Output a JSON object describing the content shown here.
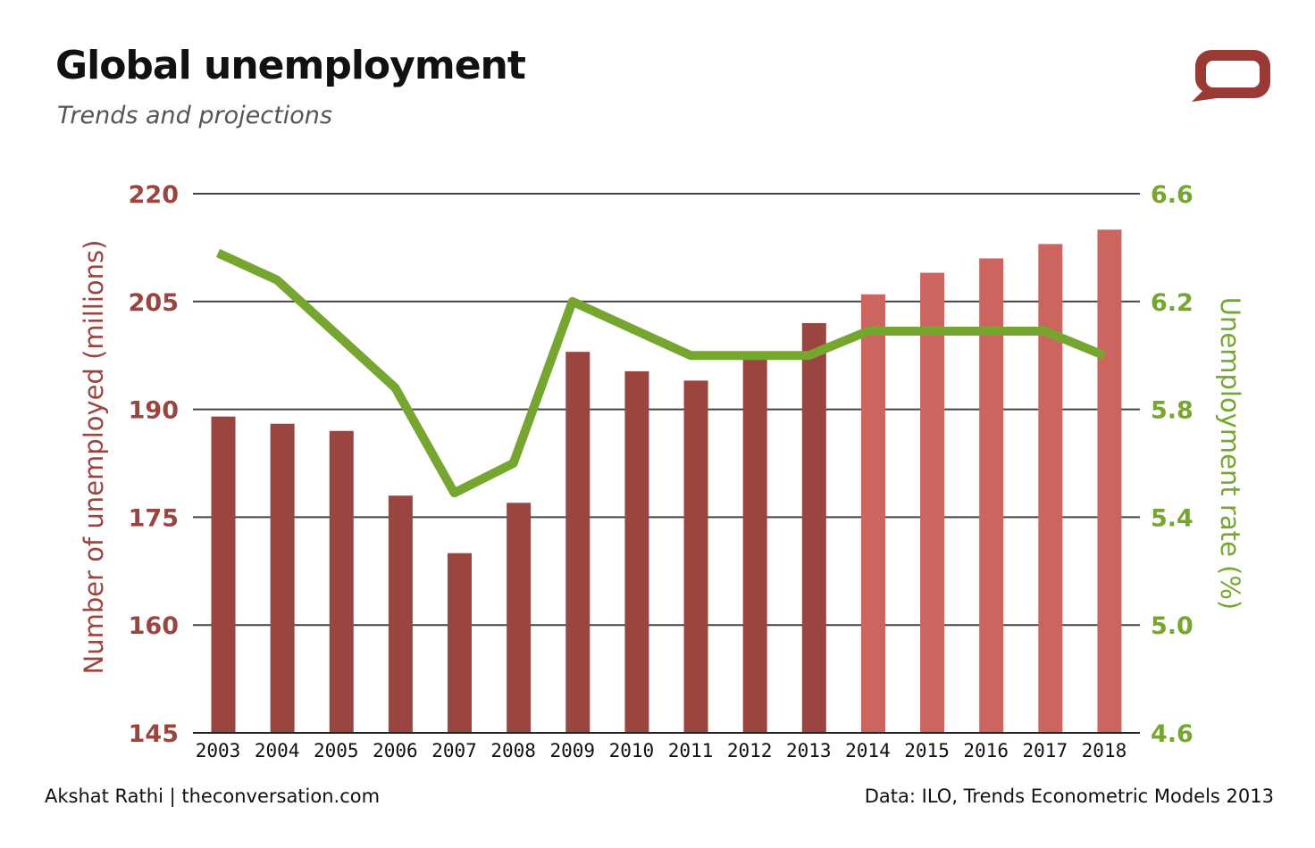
{
  "header": {
    "title": "Global unemployment",
    "subtitle": "Trends and projections"
  },
  "footer": {
    "author": "Akshat Rathi | theconversation.com",
    "source": "Data: ILO, Trends Econometric Models 2013"
  },
  "logo": {
    "icon": "speech-bubble-icon",
    "color": "#9b3a35"
  },
  "colors": {
    "bar_actual": "#9a4540",
    "bar_projected": "#cc6460",
    "line": "#77a630",
    "left_axis": "#9a4540",
    "right_axis": "#77a630",
    "grid": "#444444"
  },
  "chart_data": {
    "type": "bar",
    "categories": [
      "2003",
      "2004",
      "2005",
      "2006",
      "2007",
      "2008",
      "2009",
      "2010",
      "2011",
      "2012",
      "2013",
      "2014",
      "2015",
      "2016",
      "2017",
      "2018"
    ],
    "series": [
      {
        "type": "bar",
        "axis": "left",
        "values": [
          189,
          188,
          187,
          178,
          170,
          177,
          198,
          195.3,
          194,
          197,
          202,
          206,
          209,
          211,
          213,
          215
        ]
      },
      {
        "type": "line",
        "axis": "right",
        "values": [
          6.38,
          6.28,
          6.08,
          5.88,
          5.49,
          5.6,
          6.2,
          6.1,
          6.0,
          6.0,
          6.0,
          6.09,
          6.09,
          6.09,
          6.09,
          6.0
        ]
      }
    ],
    "projected_from": "2014",
    "ylabel": "Number of unemployed (millions)",
    "y2label": "Unemployment rate (%)",
    "ylim": [
      145,
      220
    ],
    "y2lim": [
      4.6,
      6.6
    ],
    "yticks": [
      "220",
      "205",
      "190",
      "175",
      "160",
      "145"
    ],
    "y2ticks": [
      "6.6",
      "6.2",
      "5.8",
      "5.4",
      "5.0",
      "4.6"
    ],
    "grid": true
  }
}
